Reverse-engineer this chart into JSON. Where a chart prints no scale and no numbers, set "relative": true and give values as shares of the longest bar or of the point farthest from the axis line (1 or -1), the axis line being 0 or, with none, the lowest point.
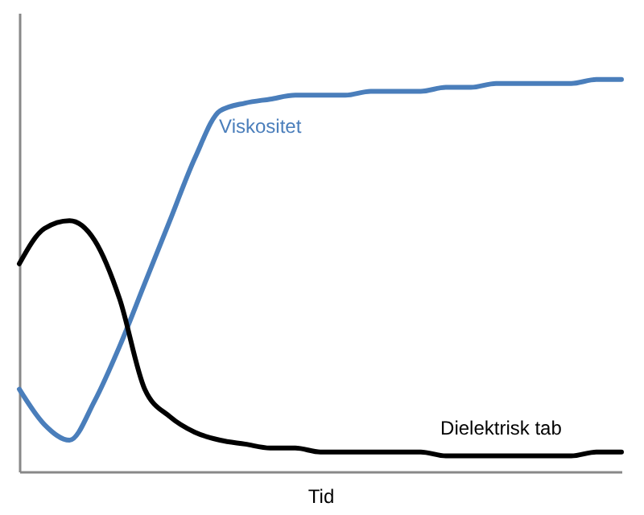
{
  "chart_data": {
    "type": "line",
    "relative": true,
    "xlabel": "Tid",
    "grid": false,
    "legend": false,
    "marker": "none",
    "line_style": "solid",
    "categories": [
      null,
      null,
      null,
      null,
      null,
      null,
      null,
      null,
      null,
      null,
      null,
      null,
      null,
      null,
      null,
      null,
      null,
      null,
      null,
      null,
      null,
      null,
      null,
      null,
      null
    ],
    "series": [
      {
        "name": "Viskositet",
        "color": "#4a7ebb",
        "values": [
          0.21,
          0.12,
          0.08,
          0.18,
          0.32,
          0.48,
          0.64,
          0.8,
          0.92,
          0.94,
          0.95,
          0.96,
          0.96,
          0.96,
          0.97,
          0.97,
          0.97,
          0.98,
          0.98,
          0.99,
          0.99,
          0.99,
          0.99,
          1,
          1
        ]
      },
      {
        "name": "Dielektrisk tab",
        "color": "#000000",
        "values": [
          0.53,
          0.62,
          0.64,
          0.59,
          0.44,
          0.21,
          0.14,
          0.1,
          0.08,
          0.07,
          0.06,
          0.06,
          0.05,
          0.05,
          0.05,
          0.05,
          0.05,
          0.04,
          0.04,
          0.04,
          0.04,
          0.04,
          0.04,
          0.05,
          0.05
        ]
      }
    ]
  }
}
